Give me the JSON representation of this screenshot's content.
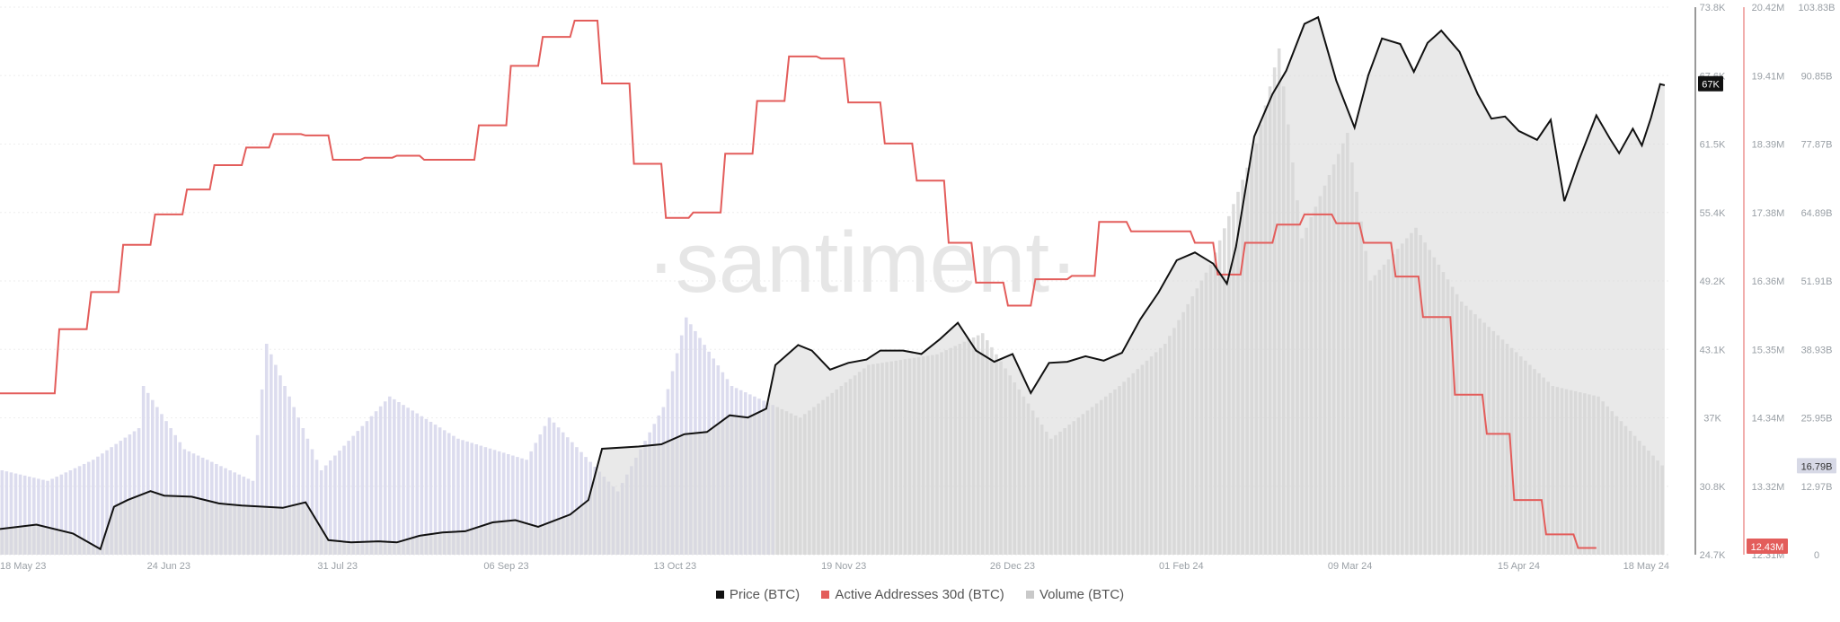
{
  "chart_data": {
    "type": "line",
    "watermark": "·santiment·",
    "x_ticks": [
      "18 May 23",
      "24 Jun 23",
      "31 Jul 23",
      "06 Sep 23",
      "13 Oct 23",
      "19 Nov 23",
      "26 Dec 23",
      "01 Feb 24",
      "09 Mar 24",
      "15 Apr 24",
      "18 May 24"
    ],
    "price_axis": {
      "ticks": [
        "73.8K",
        "67.6K",
        "61.5K",
        "55.4K",
        "49.2K",
        "43.1K",
        "37K",
        "30.8K",
        "24.7K"
      ],
      "min": 24.7,
      "max": 73.8,
      "current_label": "67K"
    },
    "active_addresses_axis": {
      "ticks": [
        "20.42M",
        "19.41M",
        "18.39M",
        "17.38M",
        "16.36M",
        "15.35M",
        "14.34M",
        "13.32M",
        "12.31M"
      ],
      "min": 12.31,
      "max": 20.42,
      "current_label": "12.43M",
      "color": "#e35d5b"
    },
    "volume_axis": {
      "ticks": [
        "103.83B",
        "90.85B",
        "77.87B",
        "64.89B",
        "51.91B",
        "38.93B",
        "25.95B",
        "12.97B",
        "0"
      ],
      "min": 0,
      "max": 103.83,
      "current_label": "16.79B"
    },
    "series": [
      {
        "name": "Price (BTC)",
        "color": "#111111",
        "points": [
          [
            0,
            27.0
          ],
          [
            8,
            27.4
          ],
          [
            16,
            26.6
          ],
          [
            22,
            25.2
          ],
          [
            25,
            29.0
          ],
          [
            28,
            29.6
          ],
          [
            33,
            30.4
          ],
          [
            36,
            30.0
          ],
          [
            42,
            29.9
          ],
          [
            48,
            29.3
          ],
          [
            53,
            29.1
          ],
          [
            58,
            29.0
          ],
          [
            62,
            28.9
          ],
          [
            67,
            29.4
          ],
          [
            72,
            26.0
          ],
          [
            77,
            25.8
          ],
          [
            83,
            25.9
          ],
          [
            87,
            25.8
          ],
          [
            92,
            26.4
          ],
          [
            97,
            26.7
          ],
          [
            102,
            26.8
          ],
          [
            108,
            27.6
          ],
          [
            113,
            27.8
          ],
          [
            118,
            27.2
          ],
          [
            125,
            28.3
          ],
          [
            129,
            29.6
          ],
          [
            132,
            34.2
          ],
          [
            140,
            34.4
          ],
          [
            145,
            34.6
          ],
          [
            150,
            35.5
          ],
          [
            155,
            35.7
          ],
          [
            160,
            37.2
          ],
          [
            164,
            37.0
          ],
          [
            168,
            37.8
          ],
          [
            170,
            41.7
          ],
          [
            175,
            43.5
          ],
          [
            178,
            43.0
          ],
          [
            182,
            41.3
          ],
          [
            186,
            41.9
          ],
          [
            190,
            42.2
          ],
          [
            193,
            43.0
          ],
          [
            198,
            43.0
          ],
          [
            202,
            42.7
          ],
          [
            206,
            44.0
          ],
          [
            210,
            45.5
          ],
          [
            214,
            43.0
          ],
          [
            218,
            42.0
          ],
          [
            222,
            42.7
          ],
          [
            226,
            39.2
          ],
          [
            230,
            41.9
          ],
          [
            234,
            42.0
          ],
          [
            238,
            42.5
          ],
          [
            242,
            42.1
          ],
          [
            246,
            42.8
          ],
          [
            250,
            45.8
          ],
          [
            254,
            48.2
          ],
          [
            258,
            51.1
          ],
          [
            262,
            51.8
          ],
          [
            266,
            50.8
          ],
          [
            269,
            49.0
          ],
          [
            271,
            52.3
          ],
          [
            275,
            62.2
          ],
          [
            279,
            66.0
          ],
          [
            282,
            68.1
          ],
          [
            286,
            72.3
          ],
          [
            289,
            72.9
          ],
          [
            293,
            67.2
          ],
          [
            297,
            63.0
          ],
          [
            300,
            67.7
          ],
          [
            303,
            71.0
          ],
          [
            307,
            70.5
          ],
          [
            310,
            68.0
          ],
          [
            313,
            70.6
          ],
          [
            316,
            71.7
          ],
          [
            320,
            69.8
          ],
          [
            324,
            66.0
          ],
          [
            327,
            63.8
          ],
          [
            330,
            64.0
          ],
          [
            333,
            62.7
          ],
          [
            337,
            61.9
          ],
          [
            340,
            63.7
          ],
          [
            343,
            56.4
          ],
          [
            346,
            59.9
          ],
          [
            350,
            64.1
          ],
          [
            353,
            62.0
          ],
          [
            355,
            60.7
          ],
          [
            358,
            62.9
          ],
          [
            360,
            61.4
          ],
          [
            362,
            63.9
          ],
          [
            364,
            66.9
          ],
          [
            365,
            66.8
          ]
        ]
      },
      {
        "name": "Active Addresses 30d (BTC)",
        "color": "#e35d5b",
        "points": [
          [
            0,
            14.7
          ],
          [
            12,
            14.7
          ],
          [
            13,
            15.65
          ],
          [
            19,
            15.65
          ],
          [
            20,
            16.2
          ],
          [
            26,
            16.2
          ],
          [
            27,
            16.9
          ],
          [
            33,
            16.9
          ],
          [
            34,
            17.35
          ],
          [
            40,
            17.35
          ],
          [
            41,
            17.72
          ],
          [
            46,
            17.72
          ],
          [
            47,
            18.08
          ],
          [
            53,
            18.08
          ],
          [
            54,
            18.34
          ],
          [
            59,
            18.34
          ],
          [
            60,
            18.54
          ],
          [
            66,
            18.54
          ],
          [
            67,
            18.52
          ],
          [
            72,
            18.52
          ],
          [
            73,
            18.16
          ],
          [
            79,
            18.16
          ],
          [
            80,
            18.19
          ],
          [
            86,
            18.19
          ],
          [
            87,
            18.22
          ],
          [
            92,
            18.22
          ],
          [
            93,
            18.16
          ],
          [
            104,
            18.16
          ],
          [
            105,
            18.67
          ],
          [
            111,
            18.67
          ],
          [
            112,
            19.55
          ],
          [
            118,
            19.55
          ],
          [
            119,
            19.98
          ],
          [
            125,
            19.98
          ],
          [
            126,
            20.22
          ],
          [
            131,
            20.22
          ],
          [
            132,
            19.29
          ],
          [
            138,
            19.29
          ],
          [
            139,
            18.1
          ],
          [
            145,
            18.1
          ],
          [
            146,
            17.3
          ],
          [
            151,
            17.3
          ],
          [
            152,
            17.38
          ],
          [
            158,
            17.38
          ],
          [
            159,
            18.25
          ],
          [
            165,
            18.25
          ],
          [
            166,
            19.03
          ],
          [
            172,
            19.03
          ],
          [
            173,
            19.69
          ],
          [
            179,
            19.69
          ],
          [
            180,
            19.66
          ],
          [
            185,
            19.66
          ],
          [
            186,
            19.01
          ],
          [
            193,
            19.01
          ],
          [
            194,
            18.4
          ],
          [
            200,
            18.4
          ],
          [
            201,
            17.85
          ],
          [
            207,
            17.85
          ],
          [
            208,
            16.93
          ],
          [
            213,
            16.93
          ],
          [
            214,
            16.34
          ],
          [
            220,
            16.34
          ],
          [
            221,
            16.0
          ],
          [
            226,
            16.0
          ],
          [
            227,
            16.39
          ],
          [
            234,
            16.39
          ],
          [
            235,
            16.44
          ],
          [
            240,
            16.44
          ],
          [
            241,
            17.24
          ],
          [
            247,
            17.24
          ],
          [
            248,
            17.1
          ],
          [
            261,
            17.1
          ],
          [
            262,
            16.93
          ],
          [
            266,
            16.93
          ],
          [
            267,
            16.46
          ],
          [
            272,
            16.46
          ],
          [
            273,
            16.93
          ],
          [
            279,
            16.93
          ],
          [
            280,
            17.2
          ],
          [
            285,
            17.2
          ],
          [
            286,
            17.35
          ],
          [
            292,
            17.35
          ],
          [
            293,
            17.22
          ],
          [
            298,
            17.22
          ],
          [
            299,
            16.93
          ],
          [
            305,
            16.93
          ],
          [
            306,
            16.43
          ],
          [
            311,
            16.43
          ],
          [
            312,
            15.83
          ],
          [
            318,
            15.83
          ],
          [
            319,
            14.68
          ],
          [
            325,
            14.68
          ],
          [
            326,
            14.1
          ],
          [
            331,
            14.1
          ],
          [
            332,
            13.12
          ],
          [
            338,
            13.12
          ],
          [
            339,
            12.61
          ],
          [
            345,
            12.61
          ],
          [
            346,
            12.41
          ],
          [
            350,
            12.41
          ]
        ]
      },
      {
        "name": "Volume (BTC)",
        "color": "#c9c9c9",
        "points": [
          [
            0,
            16
          ],
          [
            10,
            14
          ],
          [
            20,
            18
          ],
          [
            30,
            24
          ],
          [
            31,
            32
          ],
          [
            40,
            20
          ],
          [
            55,
            14
          ],
          [
            58,
            40
          ],
          [
            70,
            16
          ],
          [
            85,
            30
          ],
          [
            100,
            22
          ],
          [
            115,
            18
          ],
          [
            120,
            26
          ],
          [
            135,
            12
          ],
          [
            145,
            28
          ],
          [
            150,
            45
          ],
          [
            160,
            32
          ],
          [
            175,
            26
          ],
          [
            190,
            36
          ],
          [
            205,
            38
          ],
          [
            215,
            42
          ],
          [
            230,
            22
          ],
          [
            245,
            32
          ],
          [
            255,
            40
          ],
          [
            265,
            55
          ],
          [
            275,
            78
          ],
          [
            280,
            96
          ],
          [
            285,
            60
          ],
          [
            295,
            80
          ],
          [
            300,
            52
          ],
          [
            310,
            62
          ],
          [
            320,
            48
          ],
          [
            330,
            40
          ],
          [
            340,
            32
          ],
          [
            350,
            30
          ],
          [
            365,
            16
          ]
        ]
      }
    ]
  },
  "legend": {
    "price": {
      "label": "Price (BTC)",
      "color": "#111111"
    },
    "active": {
      "label": "Active Addresses 30d (BTC)",
      "color": "#e35d5b"
    },
    "volume": {
      "label": "Volume (BTC)",
      "color": "#c9c9c9"
    }
  }
}
